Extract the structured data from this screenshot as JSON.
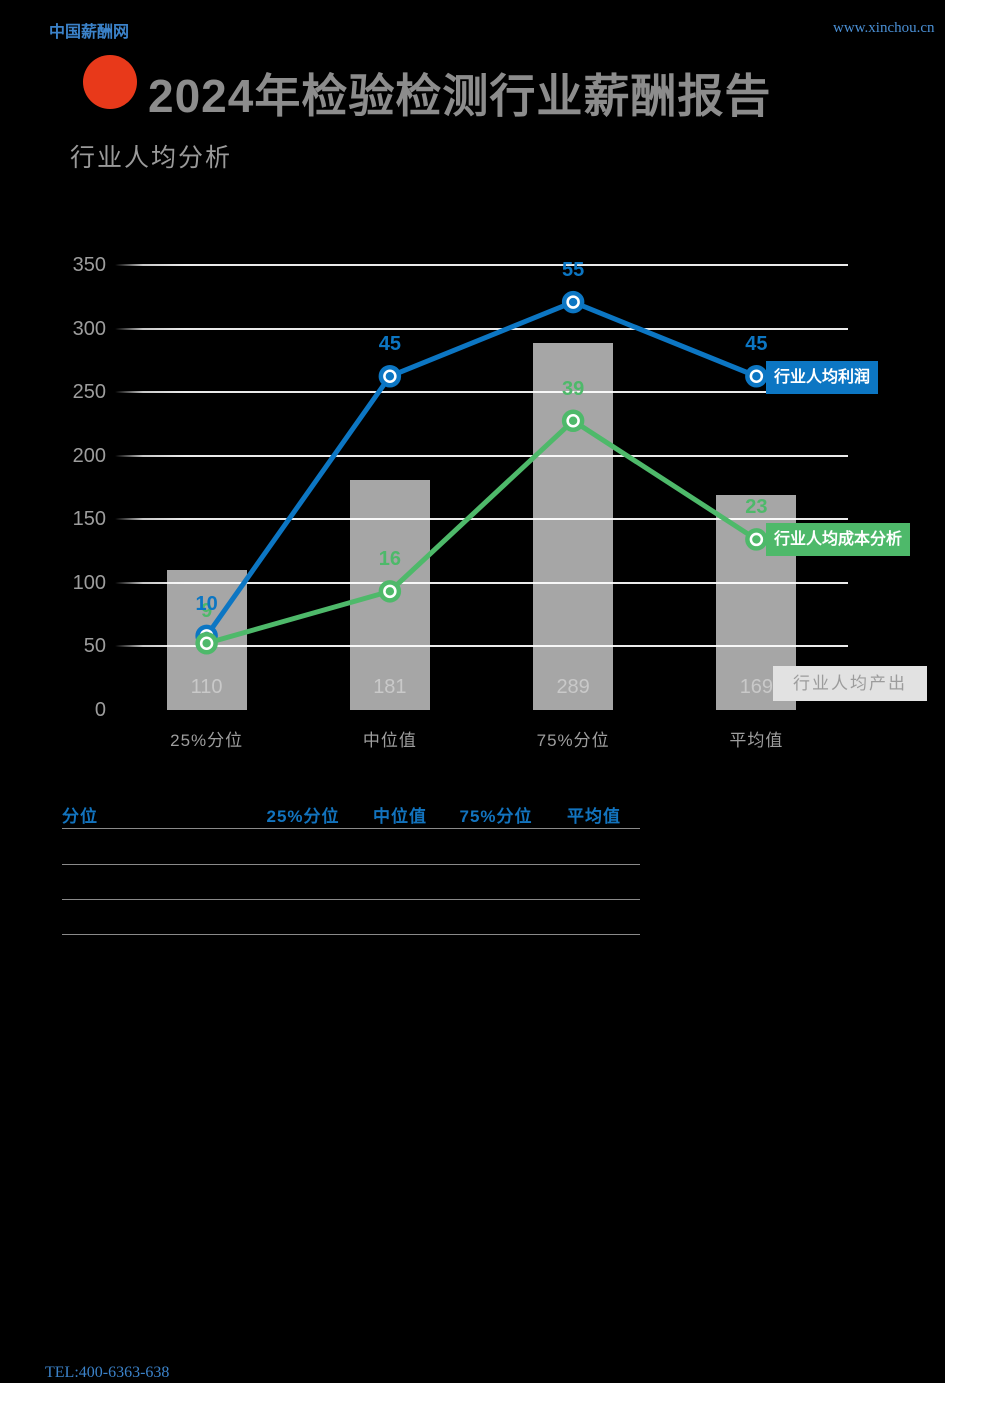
{
  "header": {
    "site_name": "中国薪酬网",
    "site_url": "www.xinchou.cn",
    "title": "2024年检验检测行业薪酬报告",
    "subtitle": "行业人均分析"
  },
  "footer": {
    "tel": "TEL:400-6363-638"
  },
  "colors": {
    "page_black": "#000000",
    "accent_red": "#e8391a",
    "blue_text": "#3b82c9",
    "table_header_blue": "#1273be",
    "line_blue": "#0c76c3",
    "line_green": "#4eb96a",
    "bar_gray": "#a6a6a6",
    "bar_value_gray": "#c9c9c9",
    "axis_label_gray": "#9d9d9d",
    "title_gray": "#8c8c8c",
    "gray_legend_bg": "#e2e2e2",
    "gray_legend_text": "#9c9c9c"
  },
  "chart_data": {
    "type": "combo (bar + line)",
    "categories": [
      "25%分位",
      "中位值",
      "75%分位",
      "平均值"
    ],
    "series": [
      {
        "name": "行业人均产出",
        "type": "bar",
        "axis": "primary",
        "values": [
          110,
          181,
          289,
          169
        ],
        "color": "#a6a6a6"
      },
      {
        "name": "行业人均利润",
        "type": "line",
        "axis": "secondary",
        "values": [
          10,
          45,
          55,
          45
        ],
        "color": "#0c76c3"
      },
      {
        "name": "行业人均成本分析",
        "type": "line",
        "axis": "secondary",
        "values": [
          9,
          16,
          39,
          23
        ],
        "color": "#4eb96a"
      }
    ],
    "title": "行业人均分析",
    "xlabel": "",
    "ylabel": "",
    "ylim": [
      0,
      350
    ],
    "yticks": [
      0,
      50,
      100,
      150,
      200,
      250,
      300,
      350
    ],
    "y2lim": [
      0,
      60
    ],
    "secondary_axis_visible": false,
    "grid": "horizontal white gridlines on black, drawn over bars",
    "legend": "colored label chips beside last data points",
    "bar_value_labels": "inside bars near bottom",
    "line_value_labels": "above each marker"
  },
  "table": {
    "headers": [
      "分位",
      "25%分位",
      "中位值",
      "75%分位",
      "平均值"
    ],
    "rows": [
      [
        "",
        "",
        "",
        "",
        ""
      ],
      [
        "",
        "",
        "",
        "",
        ""
      ],
      [
        "",
        "",
        "",
        "",
        ""
      ]
    ]
  }
}
